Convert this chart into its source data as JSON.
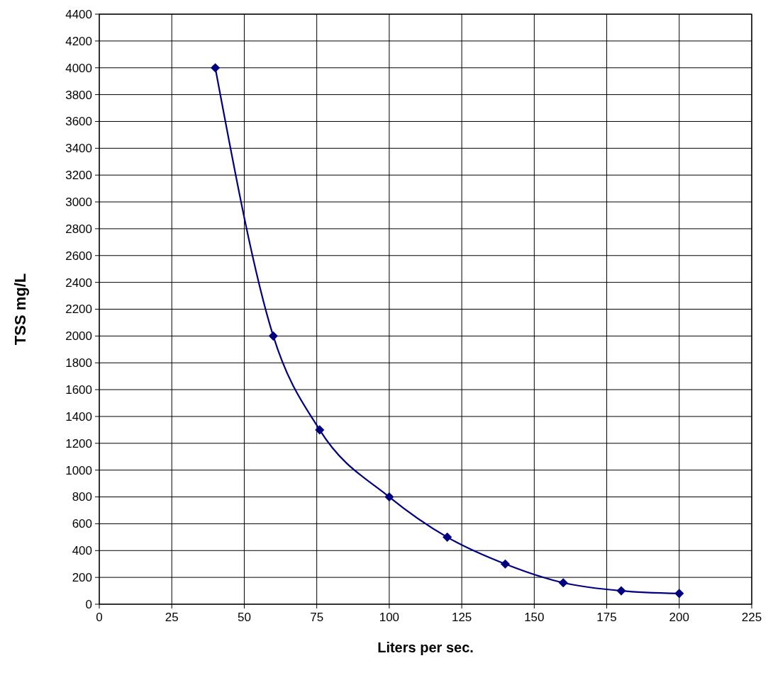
{
  "chart_data": {
    "type": "line",
    "xlabel": "Liters per sec.",
    "ylabel": "TSS mg/L",
    "x": [
      40,
      60,
      76,
      100,
      120,
      140,
      160,
      180,
      200
    ],
    "series": [
      {
        "color": "#000080",
        "values": [
          4000,
          2000,
          1300,
          800,
          500,
          300,
          160,
          100,
          80
        ]
      }
    ],
    "xlim": [
      0,
      225
    ],
    "xticks": [
      0,
      25,
      50,
      75,
      100,
      125,
      150,
      175,
      200,
      225
    ],
    "ylim": [
      0,
      4400
    ],
    "yticks": [
      0,
      200,
      400,
      600,
      800,
      1000,
      1200,
      1400,
      1600,
      1800,
      2000,
      2200,
      2400,
      2600,
      2800,
      3000,
      3200,
      3400,
      3600,
      3800,
      4000,
      4200,
      4400
    ],
    "grid": true,
    "marker": "diamond",
    "line_style": "solid"
  }
}
